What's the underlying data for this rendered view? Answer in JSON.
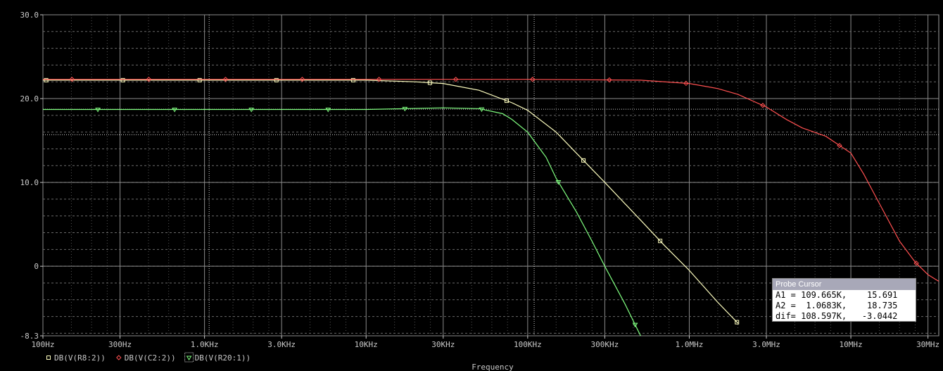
{
  "chart_data": {
    "type": "line",
    "xscale": "log",
    "xlim_hz": [
      100,
      35000000
    ],
    "ylim": [
      -8.3,
      30
    ],
    "grid": true,
    "xlabel": "Frequency",
    "ylabel": "",
    "x_ticks": [
      {
        "v": 100,
        "label": "100Hz"
      },
      {
        "v": 300,
        "label": "300Hz"
      },
      {
        "v": 1000,
        "label": "1.0KHz"
      },
      {
        "v": 3000,
        "label": "3.0KHz"
      },
      {
        "v": 10000,
        "label": "10KHz"
      },
      {
        "v": 30000,
        "label": "30KHz"
      },
      {
        "v": 100000,
        "label": "100KHz"
      },
      {
        "v": 300000,
        "label": "300KHz"
      },
      {
        "v": 1000000,
        "label": "1.0MHz"
      },
      {
        "v": 3000000,
        "label": "3.0MHz"
      },
      {
        "v": 10000000,
        "label": "10MHz"
      },
      {
        "v": 30000000,
        "label": "30MHz"
      }
    ],
    "y_ticks": [
      {
        "v": 30,
        "label": "30.0"
      },
      {
        "v": 20,
        "label": "20.0"
      },
      {
        "v": 10,
        "label": "10.0"
      },
      {
        "v": 0,
        "label": "0"
      },
      {
        "v": -8.3,
        "label": "-8.3"
      }
    ],
    "y_minor_step": 2,
    "cursor_lines": [
      {
        "x": 109665,
        "y": 15.691
      },
      {
        "x": 1068.3,
        "y": 18.735
      }
    ],
    "series": [
      {
        "name": "DB(V(R8:2))",
        "color": "#ffffc0",
        "marker": "square",
        "x": [
          90,
          1000,
          10000,
          20000,
          30000,
          50000,
          80000,
          100000,
          150000,
          200000,
          300000,
          500000,
          700000,
          1000000,
          1500000,
          2000000
        ],
        "y": [
          22.2,
          22.2,
          22.2,
          22.0,
          21.8,
          21.0,
          19.5,
          18.6,
          16.0,
          13.5,
          10.0,
          5.5,
          2.5,
          -0.5,
          -4.3,
          -6.8
        ]
      },
      {
        "name": "DB(V(C2:2))",
        "color": "#ff5050",
        "marker": "diamond",
        "x": [
          90,
          1000,
          10000,
          100000,
          500000,
          1000000,
          1500000,
          2000000,
          3000000,
          4000000,
          5000000,
          7000000,
          10000000,
          12000000,
          15000000,
          20000000,
          25000000,
          30000000,
          35000000
        ],
        "y": [
          22.3,
          22.3,
          22.3,
          22.3,
          22.2,
          21.8,
          21.2,
          20.5,
          19.0,
          17.5,
          16.5,
          15.5,
          13.5,
          11.0,
          7.5,
          3.0,
          0.5,
          -1.0,
          -1.8
        ]
      },
      {
        "name": "DB(V(R20:1))",
        "color": "#80ff80",
        "marker": "triangle",
        "x": [
          90,
          1000,
          10000,
          30000,
          50000,
          70000,
          80000,
          100000,
          130000,
          150000,
          200000,
          250000,
          300000,
          400000,
          500000
        ],
        "y": [
          18.7,
          18.7,
          18.7,
          18.9,
          18.8,
          18.2,
          17.5,
          16.0,
          13.0,
          10.5,
          6.5,
          3.0,
          0.0,
          -4.5,
          -8.3
        ]
      }
    ]
  },
  "probe_cursor": {
    "title": "Probe Cursor",
    "rows": [
      "A1 = 109.665K,    15.691",
      "A2 =  1.0683K,    18.735",
      "dif= 108.597K,   -3.0442"
    ]
  }
}
